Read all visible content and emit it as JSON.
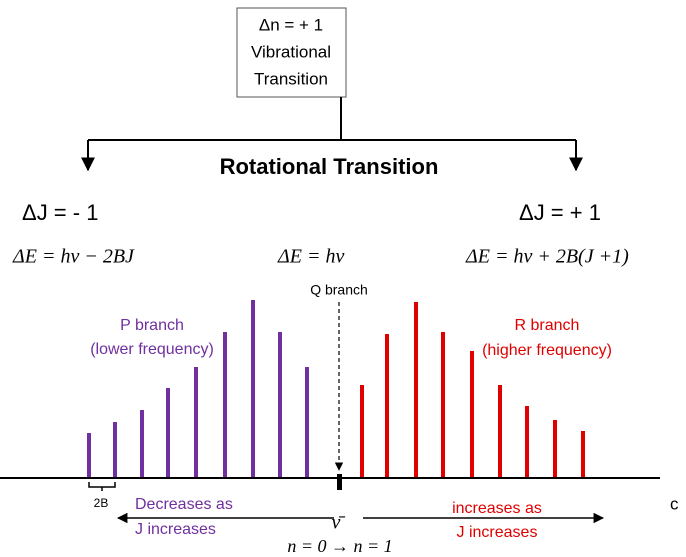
{
  "box": {
    "lines": [
      "Δn = + 1",
      "Vibrational",
      "Transition"
    ]
  },
  "heading": "Rotational Transition",
  "p_side": {
    "delta_j": "ΔJ = - 1",
    "equation": "ΔE = hν − 2BJ",
    "label": "P branch",
    "note": "(lower frequency)",
    "trend": [
      "Decreases as",
      "J increases"
    ]
  },
  "q_branch": {
    "equation": "ΔE = hν",
    "label": "Q branch"
  },
  "r_side": {
    "delta_j": "ΔJ = + 1",
    "equation": "ΔE = hν + 2B(J +1)",
    "label": "R branch",
    "note": "(higher frequency)",
    "trend": [
      "increases as",
      "J increases"
    ]
  },
  "spacing_label": "2B",
  "nu_bar": "ν̄",
  "vibrational_change": "n = 0 → n = 1",
  "axis_unit": "c"
}
